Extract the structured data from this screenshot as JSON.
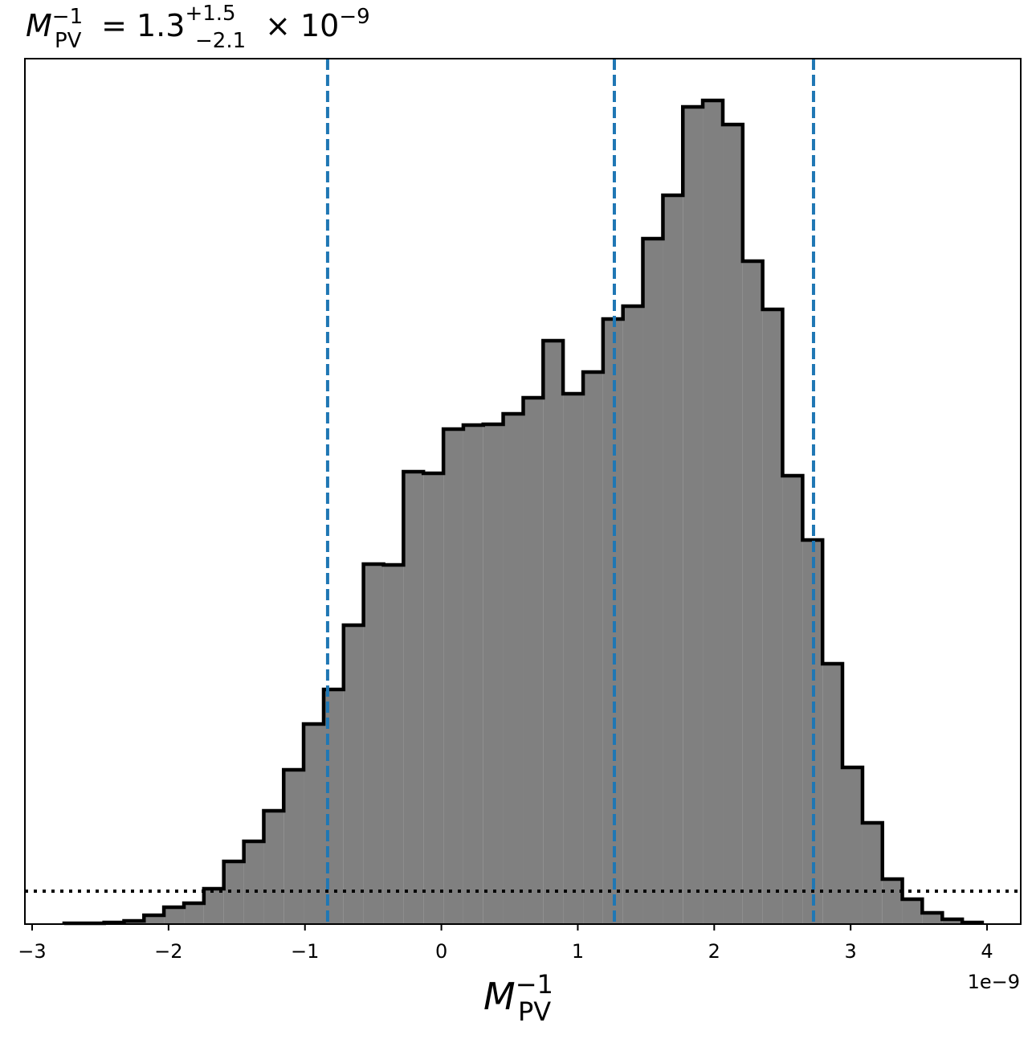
{
  "chart_data": {
    "type": "histogram",
    "title": {
      "symbol": "M",
      "sub": "PV",
      "sup": "−1",
      "eq": " = 1.3",
      "plus": "+1.5",
      "minus": "−2.1",
      "times": " × 10",
      "exp": "−9"
    },
    "xlabel": {
      "symbol": "M",
      "sub": "PV",
      "sup": "−1"
    },
    "offset_label": "1e−9",
    "color": "#808080",
    "edge_color": "#000000",
    "bins": [
      -2.765,
      -2.619,
      -2.472,
      -2.326,
      -2.18,
      -2.034,
      -1.887,
      -1.741,
      -1.595,
      -1.448,
      -1.302,
      -1.156,
      -1.01,
      -0.863,
      -0.717,
      -0.571,
      -0.424,
      -0.278,
      -0.132,
      0.015,
      0.161,
      0.307,
      0.453,
      0.6,
      0.746,
      0.892,
      1.039,
      1.185,
      1.331,
      1.477,
      1.624,
      1.77,
      1.916,
      2.063,
      2.209,
      2.355,
      2.501,
      2.648,
      2.794,
      2.94,
      3.087,
      3.233,
      3.379,
      3.525,
      3.672,
      3.818,
      3.964
    ],
    "values": [
      1,
      1,
      2,
      4,
      11,
      21,
      26,
      44,
      78,
      103,
      141,
      192,
      249,
      292,
      372,
      448,
      447,
      563,
      561,
      616,
      621,
      622,
      635,
      655,
      726,
      660,
      687,
      753,
      769,
      853,
      907,
      1017,
      1025,
      995,
      825,
      765,
      558,
      478,
      324,
      195,
      126,
      56,
      31,
      14,
      6,
      2
    ],
    "vlines": [
      -0.834,
      1.268,
      2.728
    ],
    "vline_color": "#1f77b4",
    "hline": 41,
    "xlim": [
      -3.053,
      4.247
    ],
    "ylim": [
      0,
      1077
    ],
    "xticks": [
      {
        "value": -3,
        "label": "−3"
      },
      {
        "value": -2,
        "label": "−2"
      },
      {
        "value": -1,
        "label": "−1"
      },
      0,
      1,
      2,
      3,
      4
    ]
  }
}
